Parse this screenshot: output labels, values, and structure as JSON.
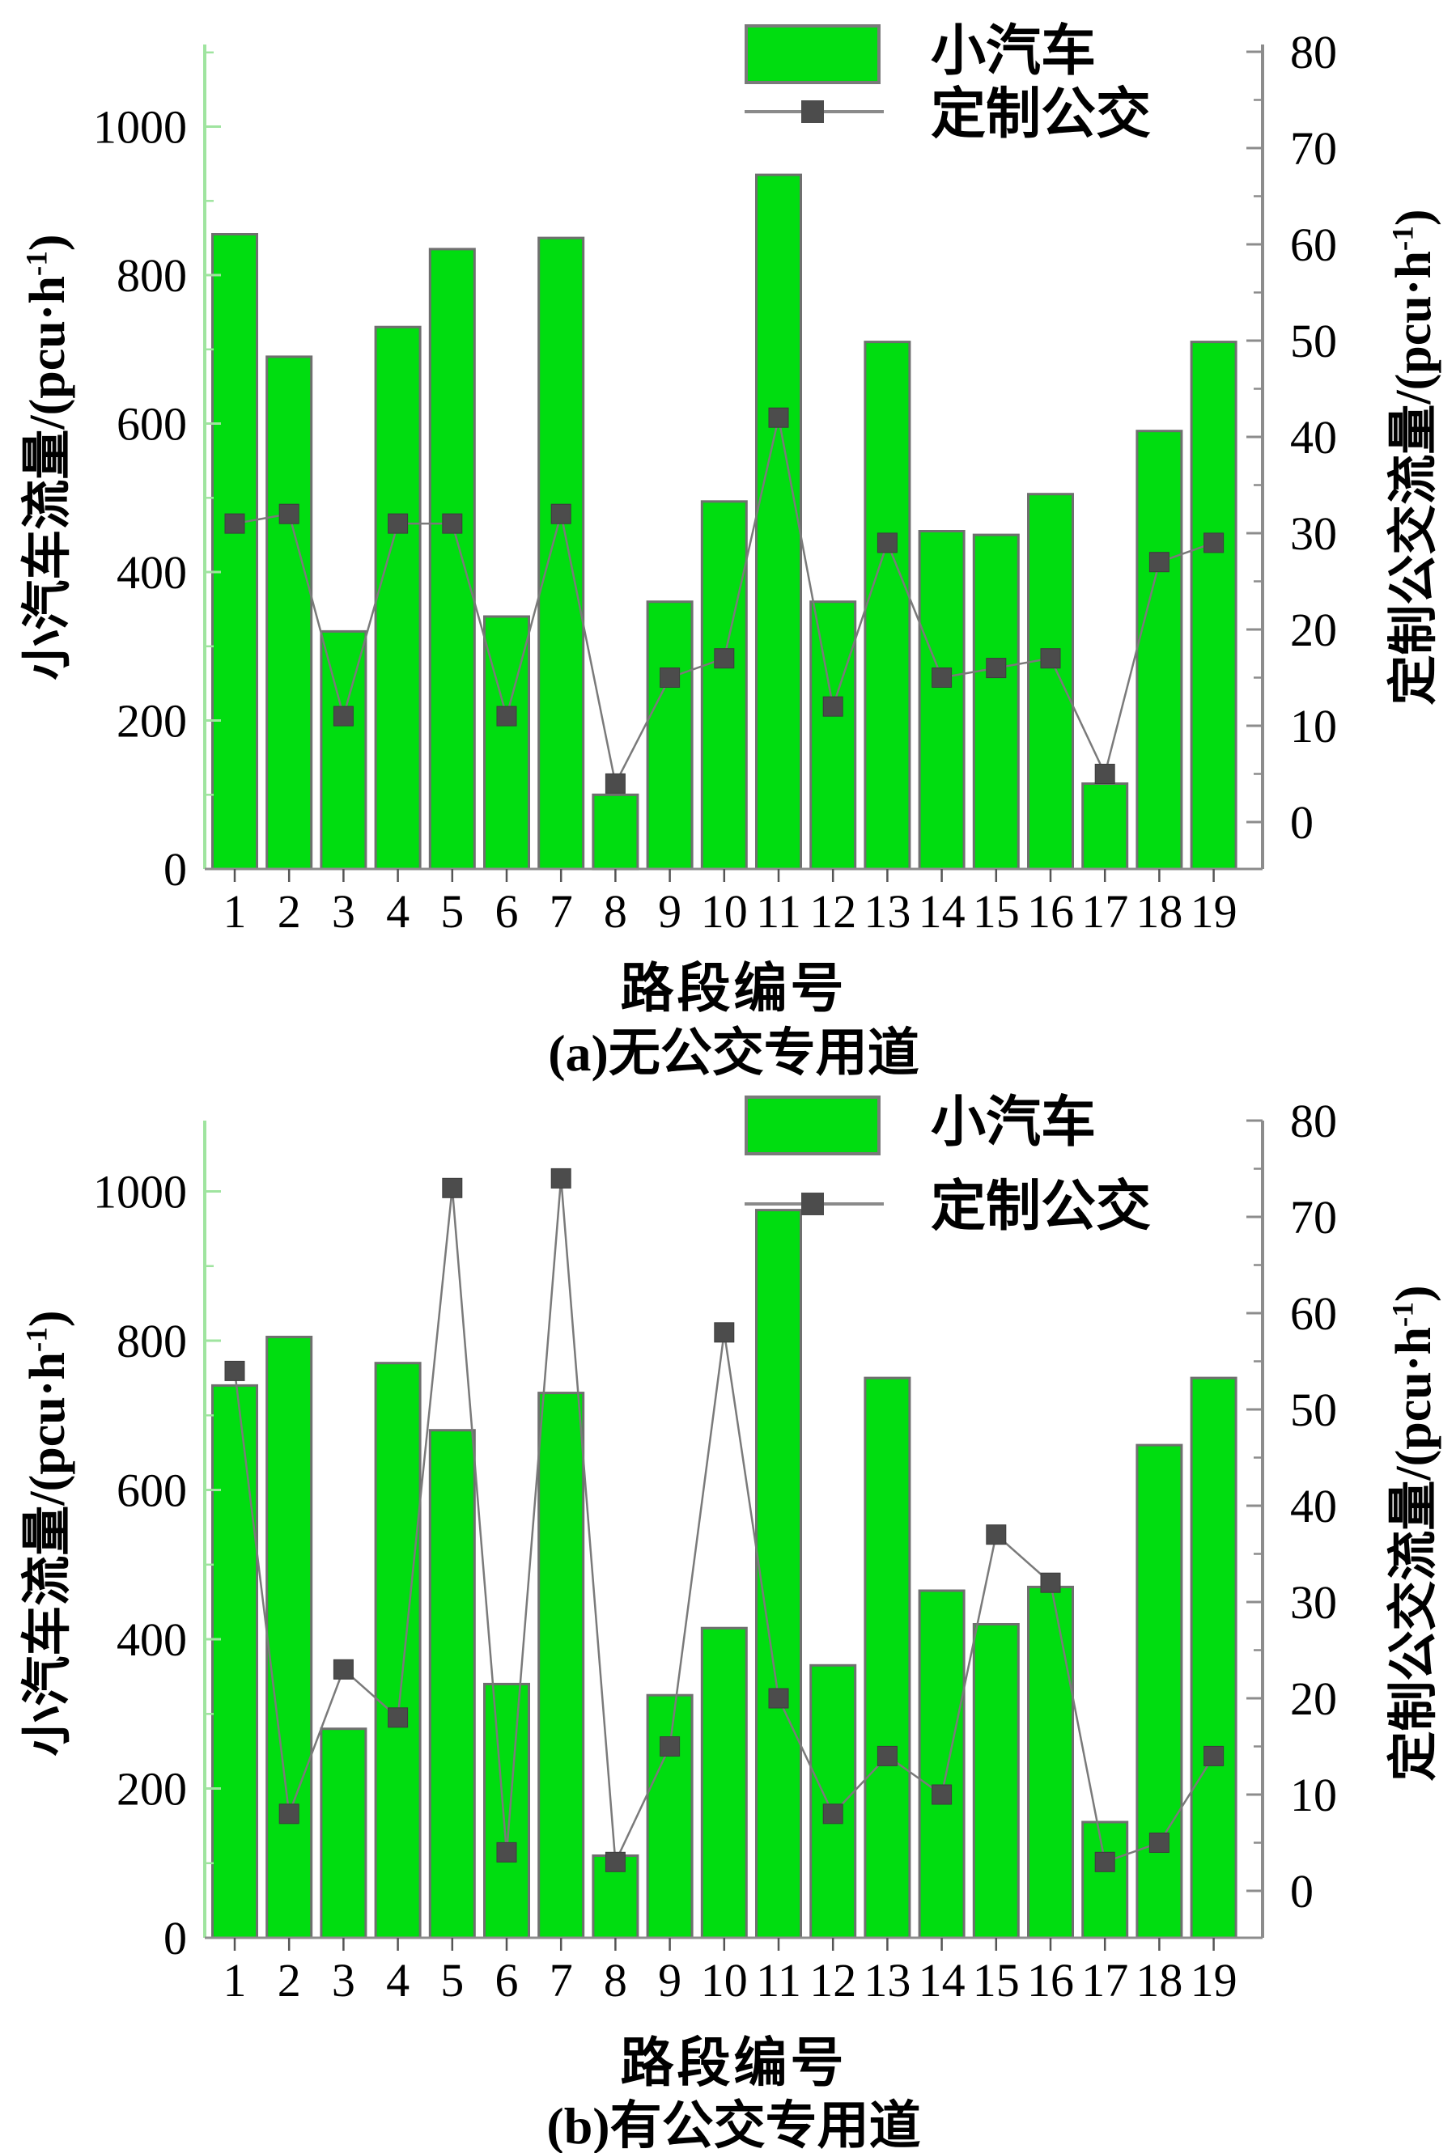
{
  "style": {
    "background": "#ffffff",
    "bar_fill": "#00dd10",
    "bar_edge": "#6f6f6f",
    "line_color": "#7a7a7a",
    "marker_color": "#4c4c4c",
    "left_spine_color": "#9fe49f",
    "right_spine_color": "#8c8c8c",
    "bottom_axis_color": "#8c8c8c",
    "x_tick_color": "#555555",
    "text_color": "#000000"
  },
  "figure": {
    "panels": [
      {
        "id": "a",
        "caption": "(a)无公交专用道",
        "xlabel": "路段编号",
        "left_axis_title": {
          "pre": "小汽车流量/(pcu·h",
          "sup": "-1",
          "post": ")"
        },
        "right_axis_title": {
          "pre": "定制公交流量/(pcu·h",
          "sup": "-1",
          "post": ")"
        },
        "legend": [
          {
            "label": "小汽车"
          },
          {
            "label": "定制公交"
          }
        ]
      },
      {
        "id": "b",
        "caption": "(b)有公交专用道",
        "xlabel": "路段编号",
        "left_axis_title": {
          "pre": "小汽车流量/(pcu·h",
          "sup": "-1",
          "post": ")"
        },
        "right_axis_title": {
          "pre": "定制公交流量/(pcu·h",
          "sup": "-1",
          "post": ")"
        },
        "legend": [
          {
            "label": "小汽车"
          },
          {
            "label": "定制公交"
          }
        ]
      }
    ]
  },
  "chart_data": [
    {
      "panel": "a",
      "type": "bar+line",
      "title": "(a)无公交专用道",
      "xlabel": "路段编号",
      "ylabel_left": "小汽车流量/(pcu·h⁻¹)",
      "ylabel_right": "定制公交流量/(pcu·h⁻¹)",
      "categories": [
        1,
        2,
        3,
        4,
        5,
        6,
        7,
        8,
        9,
        10,
        11,
        12,
        13,
        14,
        15,
        16,
        17,
        18,
        19
      ],
      "series": [
        {
          "name": "小汽车",
          "type": "bar",
          "axis": "left",
          "values": [
            855,
            690,
            320,
            730,
            835,
            340,
            850,
            100,
            360,
            495,
            935,
            360,
            710,
            455,
            450,
            505,
            115,
            590,
            710
          ]
        },
        {
          "name": "定制公交",
          "type": "line",
          "axis": "right",
          "values": [
            31,
            32,
            11,
            31,
            31,
            11,
            32,
            4,
            15,
            17,
            42,
            12,
            29,
            15,
            16,
            17,
            5,
            27,
            29
          ]
        }
      ],
      "ylim_left": [
        0,
        1110
      ],
      "ylim_right": [
        0,
        80
      ],
      "yticks_left": [
        0,
        200,
        400,
        600,
        800,
        1000
      ],
      "yticks_right": [
        0,
        10,
        20,
        30,
        40,
        50,
        60,
        70,
        80
      ],
      "legend_position": "top-right-inside",
      "grid": false
    },
    {
      "panel": "b",
      "type": "bar+line",
      "title": "(b)有公交专用道",
      "xlabel": "路段编号",
      "ylabel_left": "小汽车流量/(pcu·h⁻¹)",
      "ylabel_right": "定制公交流量/(pcu·h⁻¹)",
      "categories": [
        1,
        2,
        3,
        4,
        5,
        6,
        7,
        8,
        9,
        10,
        11,
        12,
        13,
        14,
        15,
        16,
        17,
        18,
        19
      ],
      "series": [
        {
          "name": "小汽车",
          "type": "bar",
          "axis": "left",
          "values": [
            740,
            805,
            280,
            770,
            680,
            340,
            730,
            110,
            325,
            415,
            975,
            365,
            750,
            465,
            420,
            470,
            155,
            660,
            750
          ]
        },
        {
          "name": "定制公交",
          "type": "line",
          "axis": "right",
          "values": [
            54,
            8,
            23,
            18,
            73,
            4,
            74,
            3,
            15,
            58,
            20,
            8,
            14,
            10,
            37,
            32,
            3,
            5,
            14
          ]
        }
      ],
      "ylim_left": [
        0,
        1110
      ],
      "ylim_right": [
        0,
        80
      ],
      "yticks_left": [
        0,
        200,
        400,
        600,
        800,
        1000
      ],
      "yticks_right": [
        0,
        10,
        20,
        30,
        40,
        50,
        60,
        70,
        80
      ],
      "legend_position": "top-right-inside",
      "grid": false
    }
  ]
}
